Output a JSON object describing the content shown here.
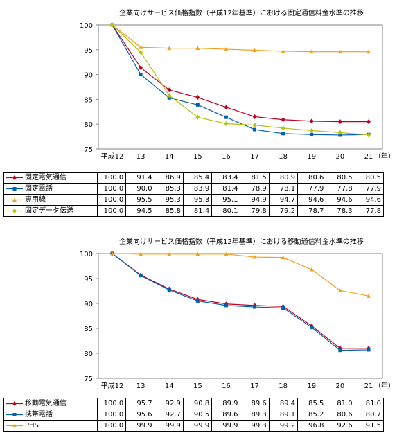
{
  "chart_data": [
    {
      "type": "line",
      "title": "企業向けサービス価格指数（平成12年基準）における固定通信料金水準の推移",
      "categories": [
        "平成12",
        "13",
        "14",
        "15",
        "16",
        "17",
        "18",
        "19",
        "20",
        "21"
      ],
      "x_unit": "（年）",
      "ylim": [
        75,
        100
      ],
      "yticks": [
        75,
        80,
        85,
        90,
        95,
        100
      ],
      "grid": false,
      "legend": "table-below",
      "series": [
        {
          "name": "固定電気通信",
          "color": "#c00020",
          "marker": "diamond",
          "values": [
            100.0,
            91.4,
            86.9,
            85.4,
            83.4,
            81.5,
            80.9,
            80.6,
            80.5,
            80.5
          ],
          "labels": [
            "100.0",
            "91.4",
            "86.9",
            "85.4",
            "83.4",
            "81.5",
            "80.9",
            "80.6",
            "80.5",
            "80.5"
          ]
        },
        {
          "name": "固定電話",
          "color": "#0060b0",
          "marker": "square",
          "values": [
            100.0,
            90.0,
            85.3,
            83.9,
            81.4,
            78.9,
            78.1,
            77.9,
            77.8,
            77.9
          ],
          "labels": [
            "100.0",
            "90.0",
            "85.3",
            "83.9",
            "81.4",
            "78.9",
            "78.1",
            "77.9",
            "77.8",
            "77.9"
          ]
        },
        {
          "name": "専用線",
          "color": "#f0a020",
          "marker": "triangle",
          "values": [
            100.0,
            95.5,
            95.3,
            95.3,
            95.1,
            94.9,
            94.7,
            94.6,
            94.6,
            94.6
          ],
          "labels": [
            "100.0",
            "95.5",
            "95.3",
            "95.3",
            "95.1",
            "94.9",
            "94.7",
            "94.6",
            "94.6",
            "94.6"
          ]
        },
        {
          "name": "固定データ伝送",
          "color": "#b8c010",
          "marker": "diamond",
          "values": [
            100.0,
            94.5,
            85.8,
            81.4,
            80.1,
            79.8,
            79.2,
            78.7,
            78.3,
            77.8
          ],
          "labels": [
            "100.0",
            "94.5",
            "85.8",
            "81.4",
            "80.1",
            "79.8",
            "79.2",
            "78.7",
            "78.3",
            "77.8"
          ]
        }
      ]
    },
    {
      "type": "line",
      "title": "企業向けサービス価格指数（平成12年基準）における移動通信料金水準の推移",
      "categories": [
        "平成12",
        "13",
        "14",
        "15",
        "16",
        "17",
        "18",
        "19",
        "20",
        "21"
      ],
      "x_unit": "（年）",
      "ylim": [
        75,
        100
      ],
      "yticks": [
        75,
        80,
        85,
        90,
        95,
        100
      ],
      "grid": false,
      "legend": "table-below",
      "series": [
        {
          "name": "移動電気通信",
          "color": "#c00020",
          "marker": "diamond",
          "values": [
            100.0,
            95.7,
            92.9,
            90.8,
            89.9,
            89.6,
            89.4,
            85.5,
            81.0,
            81.0
          ],
          "labels": [
            "100.0",
            "95.7",
            "92.9",
            "90.8",
            "89.9",
            "89.6",
            "89.4",
            "85.5",
            "81.0",
            "81.0"
          ]
        },
        {
          "name": "携帯電話",
          "color": "#0060b0",
          "marker": "square",
          "values": [
            100.0,
            95.6,
            92.7,
            90.5,
            89.6,
            89.3,
            89.1,
            85.2,
            80.6,
            80.7
          ],
          "labels": [
            "100.0",
            "95.6",
            "92.7",
            "90.5",
            "89.6",
            "89.3",
            "89.1",
            "85.2",
            "80.6",
            "80.7"
          ]
        },
        {
          "name": "PHS",
          "color": "#f0a020",
          "marker": "triangle",
          "values": [
            100.0,
            99.9,
            99.9,
            99.9,
            99.9,
            99.3,
            99.2,
            96.8,
            92.6,
            91.5
          ],
          "labels": [
            "100.0",
            "99.9",
            "99.9",
            "99.9",
            "99.9",
            "99.3",
            "99.2",
            "96.8",
            "92.6",
            "91.5"
          ]
        }
      ]
    }
  ]
}
